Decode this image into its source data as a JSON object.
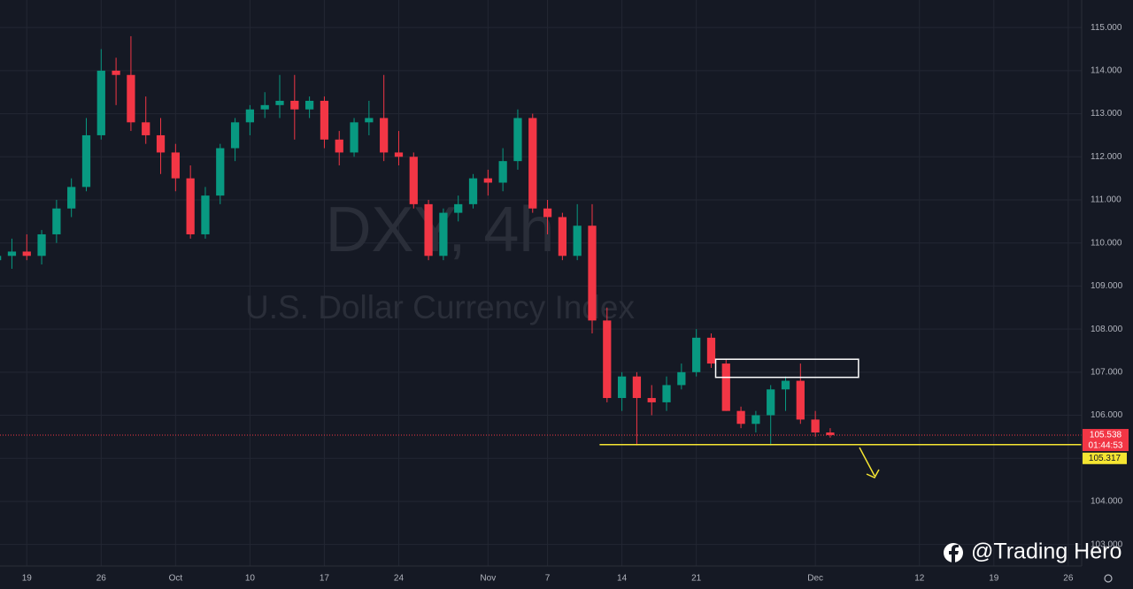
{
  "chart_data": {
    "type": "candlestick",
    "symbol_watermark": "DXY, 4h",
    "name_watermark": "U.S. Dollar Currency Index",
    "x": [
      -2,
      -1,
      0,
      1,
      2,
      3,
      4,
      5,
      6,
      7,
      8,
      9,
      10,
      11,
      12,
      13,
      14,
      15,
      16,
      17,
      18,
      19,
      20,
      21,
      22,
      23,
      24,
      25,
      26,
      27,
      28,
      29,
      30,
      31,
      32,
      33,
      34,
      35,
      36,
      37,
      38,
      39,
      40,
      41,
      42,
      43,
      44,
      45,
      46,
      47,
      48,
      49,
      50,
      51,
      52,
      53,
      54
    ],
    "open": [
      109.6,
      109.7,
      109.8,
      109.7,
      110.2,
      110.8,
      111.3,
      112.5,
      114.0,
      113.9,
      112.8,
      112.5,
      112.1,
      111.5,
      110.2,
      111.1,
      112.2,
      112.8,
      113.1,
      113.2,
      113.3,
      113.1,
      113.3,
      112.4,
      112.1,
      112.8,
      112.9,
      112.1,
      112.0,
      110.9,
      109.7,
      110.7,
      110.9,
      111.5,
      111.4,
      111.9,
      112.9,
      110.8,
      110.6,
      109.7,
      110.4,
      108.2,
      106.4,
      106.9,
      106.4,
      106.3,
      106.7,
      107.0,
      107.8,
      107.2,
      106.1,
      105.8,
      106.0,
      106.6,
      106.8,
      105.9,
      105.6
    ],
    "high": [
      109.9,
      110.1,
      110.2,
      110.3,
      111.0,
      111.5,
      112.9,
      114.5,
      114.3,
      114.8,
      113.4,
      112.9,
      112.3,
      111.8,
      111.3,
      112.3,
      112.9,
      113.2,
      113.5,
      113.9,
      113.9,
      113.4,
      113.4,
      112.6,
      112.9,
      113.3,
      113.9,
      112.6,
      112.1,
      111.0,
      110.8,
      111.1,
      111.6,
      111.7,
      112.2,
      113.1,
      113.0,
      111.0,
      110.7,
      110.9,
      110.9,
      108.5,
      107.0,
      107.0,
      106.7,
      106.9,
      107.2,
      108.0,
      107.9,
      107.3,
      106.2,
      106.1,
      106.7,
      106.9,
      107.2,
      106.1,
      105.7
    ],
    "low": [
      109.5,
      109.4,
      109.6,
      109.5,
      110.0,
      110.6,
      111.2,
      112.4,
      113.2,
      112.6,
      112.3,
      111.6,
      111.2,
      110.1,
      110.1,
      110.9,
      111.9,
      112.5,
      112.9,
      112.9,
      112.4,
      112.9,
      112.2,
      111.8,
      112.0,
      112.5,
      111.9,
      111.8,
      110.8,
      109.6,
      109.6,
      110.5,
      110.8,
      111.1,
      111.2,
      111.7,
      110.7,
      110.2,
      109.6,
      109.6,
      107.9,
      106.3,
      106.1,
      105.3,
      106.0,
      106.1,
      106.6,
      106.9,
      107.1,
      106.1,
      105.7,
      105.6,
      105.3,
      106.1,
      105.8,
      105.5,
      105.48
    ],
    "close": [
      109.7,
      109.8,
      109.7,
      110.2,
      110.8,
      111.3,
      112.5,
      114.0,
      113.9,
      112.8,
      112.5,
      112.1,
      111.5,
      110.2,
      111.1,
      112.2,
      112.8,
      113.1,
      113.2,
      113.3,
      113.1,
      113.3,
      112.4,
      112.1,
      112.8,
      112.9,
      112.1,
      112.0,
      110.9,
      109.7,
      110.7,
      110.9,
      111.5,
      111.4,
      111.9,
      112.9,
      110.8,
      110.6,
      109.7,
      110.4,
      108.2,
      106.4,
      106.9,
      106.4,
      106.3,
      106.7,
      107.0,
      107.8,
      107.2,
      106.1,
      105.8,
      106.0,
      106.6,
      106.8,
      105.9,
      105.6,
      105.54
    ],
    "up_color": "#089981",
    "down_color": "#f23645",
    "xlim": [
      -1.8,
      70.9
    ],
    "xticks": [
      {
        "value": 0,
        "label": "19"
      },
      {
        "value": 5,
        "label": "26"
      },
      {
        "value": 10,
        "label": "Oct"
      },
      {
        "value": 15,
        "label": "10"
      },
      {
        "value": 20,
        "label": "17"
      },
      {
        "value": 25,
        "label": "24"
      },
      {
        "value": 31,
        "label": "Nov"
      },
      {
        "value": 35,
        "label": "7"
      },
      {
        "value": 40,
        "label": "14"
      },
      {
        "value": 45,
        "label": "21"
      },
      {
        "value": 53,
        "label": "Dec"
      },
      {
        "value": 60,
        "label": "12"
      },
      {
        "value": 65,
        "label": "19"
      },
      {
        "value": 70,
        "label": "26"
      }
    ],
    "ylim": [
      102.5,
      115.64
    ],
    "yticks": [
      {
        "value": 103,
        "label": "103.000"
      },
      {
        "value": 104,
        "label": "104.000"
      },
      {
        "value": 105,
        "label": "105.000"
      },
      {
        "value": 106,
        "label": "106.000"
      },
      {
        "value": 107,
        "label": "107.000"
      },
      {
        "value": 108,
        "label": "108.000"
      },
      {
        "value": 109,
        "label": "109.000"
      },
      {
        "value": 110,
        "label": "110.000"
      },
      {
        "value": 111,
        "label": "111.000"
      },
      {
        "value": 112,
        "label": "112.000"
      },
      {
        "value": 113,
        "label": "113.000"
      },
      {
        "value": 114,
        "label": "114.000"
      },
      {
        "value": 115,
        "label": "115.000"
      }
    ],
    "grid": true,
    "last_price": 105.538,
    "countdown": "01:44:53",
    "support": {
      "value": 105.317,
      "x_start": 38.5,
      "color": "#f5e532"
    },
    "zone": {
      "x": [
        46.3,
        55.9
      ],
      "y": [
        106.88,
        107.3
      ]
    }
  },
  "watermark": {
    "handle": "@Trading Hero"
  }
}
